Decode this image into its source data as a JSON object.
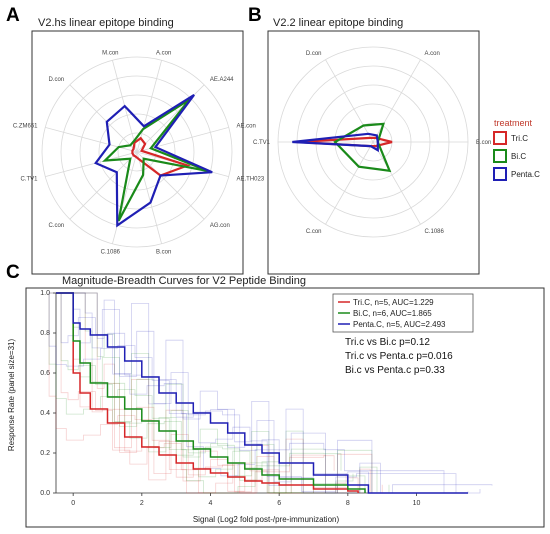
{
  "panels": {
    "a": "A",
    "b": "B",
    "c": "C"
  },
  "colors": {
    "tri": "#d62728",
    "bi": "#1a8a1a",
    "penta": "#1f1fb4",
    "grid": "#d9d9d9",
    "legend_title": "#c0392b"
  },
  "chart_data": [
    {
      "type": "radar",
      "title": "V2.hs linear epitope binding",
      "axes": [
        "A.con",
        "AE.A244",
        "AE.con",
        "AE.TH023",
        "AG.con",
        "B.con",
        "C.1086",
        "C.con",
        "C.TV1",
        "C.ZM651",
        "D.con",
        "M.con"
      ],
      "rmax": 1,
      "series": [
        {
          "name": "Tri.C",
          "values": [
            0.15,
            0.12,
            0.05,
            0.55,
            0.35,
            0.08,
            0.05,
            0.05,
            0.05,
            0.05,
            0.05,
            0.1
          ]
        },
        {
          "name": "Bi.C",
          "values": [
            0.25,
            0.78,
            0.15,
            0.78,
            0.1,
            0.25,
            0.75,
            0.1,
            0.35,
            0.2,
            0.1,
            0.12
          ]
        },
        {
          "name": "Penta.C",
          "values": [
            0.28,
            0.85,
            0.2,
            0.82,
            0.35,
            0.55,
            0.8,
            0.3,
            0.45,
            0.3,
            0.45,
            0.5
          ]
        }
      ]
    },
    {
      "type": "radar",
      "title": "V2.2 linear epitope binding",
      "axes": [
        "A.con",
        "B.con",
        "C.1086",
        "C.con",
        "C.TV1",
        "D.con"
      ],
      "rmax": 1,
      "series": [
        {
          "name": "Tri.C",
          "values": [
            0.05,
            0.2,
            0.05,
            0.05,
            0.8,
            0.05
          ]
        },
        {
          "name": "Bi.C",
          "values": [
            0.22,
            0.05,
            0.35,
            0.3,
            0.4,
            0.2
          ]
        },
        {
          "name": "Penta.C",
          "values": [
            0.08,
            0.05,
            0.1,
            0.05,
            0.85,
            0.1
          ]
        }
      ],
      "legend": {
        "title": "treatment",
        "position": "right",
        "entries": [
          "Tri.C",
          "Bi.C",
          "Penta.C"
        ]
      }
    },
    {
      "type": "line",
      "step": true,
      "title": "Magnitude-Breadth Curves for V2 Peptide Binding",
      "xlabel": "Signal (Log2 fold post-/pre-immunization)",
      "ylabel": "Response Rate (panel size=31)",
      "xlim": [
        -0.5,
        11.5
      ],
      "ylim": [
        0,
        1
      ],
      "xticks": [
        0,
        2,
        4,
        6,
        8,
        10
      ],
      "yticks": [
        "0.0",
        "0.2",
        "0.4",
        "0.6",
        "0.8",
        "1.0"
      ],
      "legend": {
        "position": "top-right",
        "entries": [
          "Tri.C, n=5, AUC=1.229",
          "Bi.C, n=6, AUC=1.865",
          "Penta.C, n=5, AUC=2.493"
        ]
      },
      "annotations": [
        "Tri.c vs Bi.c p=0.12",
        "Tri.c vs Penta.c p=0.016",
        "Bi.c vs Penta.c p=0.33"
      ],
      "series": [
        {
          "name": "Tri.C",
          "x": [
            -0.5,
            0,
            0.2,
            0.5,
            1,
            1.5,
            2,
            2.5,
            3,
            3.5,
            4,
            4.5,
            5,
            5.5,
            6,
            7,
            8,
            8.3
          ],
          "y": [
            1,
            0.6,
            0.5,
            0.42,
            0.35,
            0.28,
            0.23,
            0.19,
            0.15,
            0.12,
            0.1,
            0.08,
            0.06,
            0.05,
            0.04,
            0.02,
            0.01,
            0
          ]
        },
        {
          "name": "Bi.C",
          "x": [
            -0.5,
            0,
            0.2,
            0.5,
            1,
            1.5,
            2,
            2.5,
            3,
            3.5,
            4,
            4.5,
            5,
            5.5,
            6,
            7,
            8,
            8.5
          ],
          "y": [
            1,
            0.76,
            0.65,
            0.55,
            0.48,
            0.42,
            0.36,
            0.31,
            0.26,
            0.22,
            0.18,
            0.15,
            0.12,
            0.09,
            0.07,
            0.04,
            0.02,
            0
          ]
        },
        {
          "name": "Penta.C",
          "x": [
            -0.5,
            0,
            0.2,
            0.5,
            1,
            1.5,
            2,
            2.5,
            3,
            3.5,
            4,
            4.5,
            5,
            5.5,
            6,
            7,
            8,
            8.6,
            11.5
          ],
          "y": [
            1,
            0.85,
            0.82,
            0.79,
            0.73,
            0.66,
            0.58,
            0.5,
            0.45,
            0.4,
            0.35,
            0.3,
            0.24,
            0.2,
            0.15,
            0.09,
            0.04,
            0,
            0
          ]
        }
      ]
    }
  ]
}
